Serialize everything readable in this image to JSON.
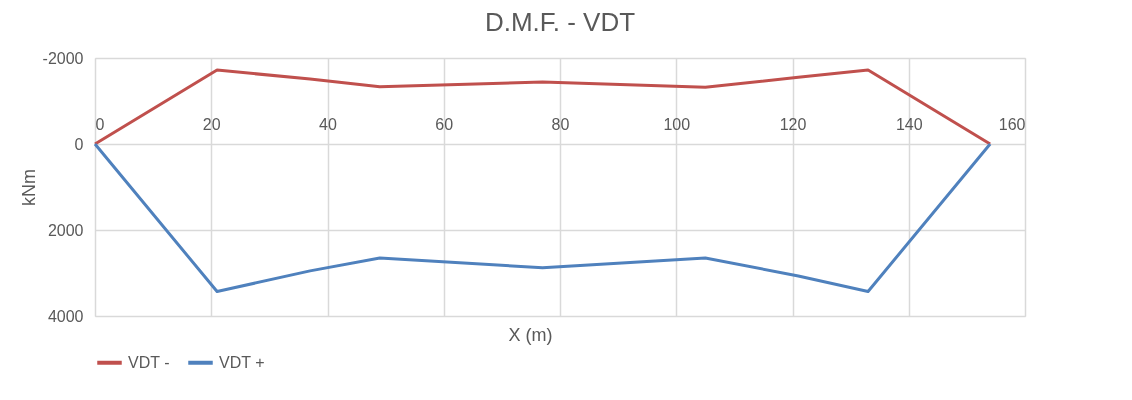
{
  "chart_data": {
    "type": "line",
    "title": "D.M.F. - VDT",
    "xlabel": "X (m)",
    "ylabel": "kNm",
    "x": [
      0,
      21,
      37,
      49,
      77,
      105,
      121,
      133,
      154
    ],
    "series": [
      {
        "name": "VDT -",
        "color": "#c0504d",
        "values": [
          0,
          -1720,
          -1510,
          -1330,
          -1440,
          -1320,
          -1550,
          -1720,
          0
        ]
      },
      {
        "name": "VDT +",
        "color": "#4f81bd",
        "values": [
          0,
          3430,
          2950,
          2650,
          2880,
          2650,
          3070,
          3430,
          0
        ]
      }
    ],
    "xlim": [
      0,
      160
    ],
    "xticks": [
      0,
      20,
      40,
      60,
      80,
      100,
      120,
      140,
      160
    ],
    "ylim": [
      4000,
      -2000
    ],
    "yticks": [
      -2000,
      0,
      2000,
      4000
    ],
    "grid": true,
    "legend": "bottom",
    "marker": "none",
    "line_style": "solid"
  }
}
